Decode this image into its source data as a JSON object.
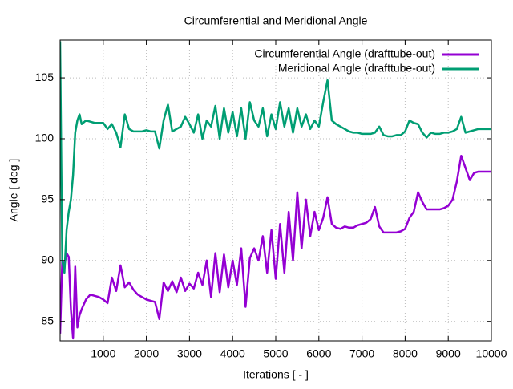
{
  "chart_data": {
    "type": "line",
    "title": "Circumferential and Meridional Angle",
    "xlabel": "Iterations [ - ]",
    "ylabel": "Angle [ deg ]",
    "x": [
      0,
      50,
      100,
      150,
      200,
      250,
      300,
      350,
      400,
      450,
      500,
      600,
      700,
      800,
      900,
      1000,
      1100,
      1200,
      1300,
      1400,
      1500,
      1600,
      1700,
      1800,
      1900,
      2000,
      2100,
      2200,
      2300,
      2400,
      2500,
      2600,
      2700,
      2800,
      2900,
      3000,
      3100,
      3200,
      3300,
      3400,
      3500,
      3600,
      3700,
      3800,
      3900,
      4000,
      4100,
      4200,
      4300,
      4400,
      4500,
      4600,
      4700,
      4800,
      4900,
      5000,
      5100,
      5200,
      5300,
      5400,
      5500,
      5600,
      5700,
      5800,
      5900,
      6000,
      6100,
      6200,
      6300,
      6400,
      6500,
      6600,
      6700,
      6800,
      6900,
      7000,
      7100,
      7200,
      7300,
      7400,
      7500,
      7600,
      7700,
      7800,
      7900,
      8000,
      8100,
      8200,
      8300,
      8400,
      8500,
      8600,
      8700,
      8800,
      8900,
      9000,
      9100,
      9200,
      9300,
      9400,
      9500,
      9600,
      9700,
      9800,
      9900,
      10000
    ],
    "series": [
      {
        "name": "Circumferential Angle (drafttube-out)",
        "color": "#9400d3",
        "values": [
          84,
          90,
          89.6,
          90.6,
          90.3,
          86,
          83.6,
          89.5,
          84.5,
          85.5,
          86,
          86.8,
          87.2,
          87.1,
          87,
          86.8,
          86.5,
          88.6,
          87.5,
          89.6,
          87.8,
          88.2,
          87.6,
          87.2,
          87,
          86.8,
          86.7,
          86.6,
          85.2,
          88.2,
          87.5,
          88.3,
          87.4,
          88.6,
          87.5,
          88.1,
          87.7,
          89,
          88,
          90,
          87,
          90.6,
          87.4,
          90.5,
          87.8,
          90,
          88,
          91,
          86.2,
          90.2,
          91,
          90,
          92,
          89,
          92.5,
          88.5,
          93,
          89,
          94,
          90,
          95.6,
          91,
          95,
          92,
          94,
          92.5,
          93.5,
          95.2,
          93,
          92.7,
          92.6,
          92.8,
          92.7,
          92.7,
          92.9,
          93,
          93.1,
          93.4,
          94.4,
          92.8,
          92.3,
          92.3,
          92.3,
          92.3,
          92.4,
          92.6,
          93.5,
          94,
          95.6,
          94.8,
          94.2,
          94.2,
          94.2,
          94.2,
          94.3,
          94.5,
          95,
          96.5,
          98.6,
          97.6,
          96.6,
          97.2,
          97.3,
          97.3,
          97.3,
          97.3
        ]
      },
      {
        "name": "Meridional Angle (drafttube-out)",
        "color": "#009e73",
        "values": [
          108,
          90,
          89,
          92.5,
          94,
          95,
          97,
          100.5,
          101.5,
          102,
          101.2,
          101.5,
          101.4,
          101.3,
          101.3,
          101.3,
          100.8,
          101.2,
          100.5,
          99.3,
          102,
          100.8,
          100.6,
          100.6,
          100.6,
          100.7,
          100.6,
          100.6,
          99.2,
          101.5,
          102.8,
          100.6,
          100.8,
          101,
          101.8,
          101.2,
          100.5,
          102,
          100,
          101.5,
          101,
          102.7,
          100,
          102.5,
          100.5,
          102.2,
          100.2,
          102.5,
          100,
          103,
          101.5,
          101,
          102.5,
          100.2,
          102,
          100.8,
          103,
          101,
          102.5,
          100.5,
          102.5,
          101,
          102,
          100.8,
          101.5,
          101,
          103,
          104.8,
          101.5,
          101.2,
          101,
          100.8,
          100.6,
          100.5,
          100.5,
          100.4,
          100.4,
          100.4,
          100.5,
          101,
          100.3,
          100.2,
          100.2,
          100.3,
          100.3,
          100.6,
          101.5,
          101.3,
          101.2,
          100.5,
          100.1,
          100.5,
          100.4,
          100.4,
          100.5,
          100.5,
          100.6,
          100.8,
          101.8,
          100.5,
          100.6,
          100.7,
          100.8,
          100.8,
          100.8,
          100.8
        ]
      }
    ],
    "xlim": [
      0,
      10000
    ],
    "xticks": [
      1000,
      2000,
      3000,
      4000,
      5000,
      6000,
      7000,
      8000,
      9000,
      10000
    ],
    "ylim": [
      83.4,
      108.1
    ],
    "yticks": [
      85,
      90,
      95,
      100,
      105
    ],
    "grid": true,
    "legend": "top-right"
  }
}
